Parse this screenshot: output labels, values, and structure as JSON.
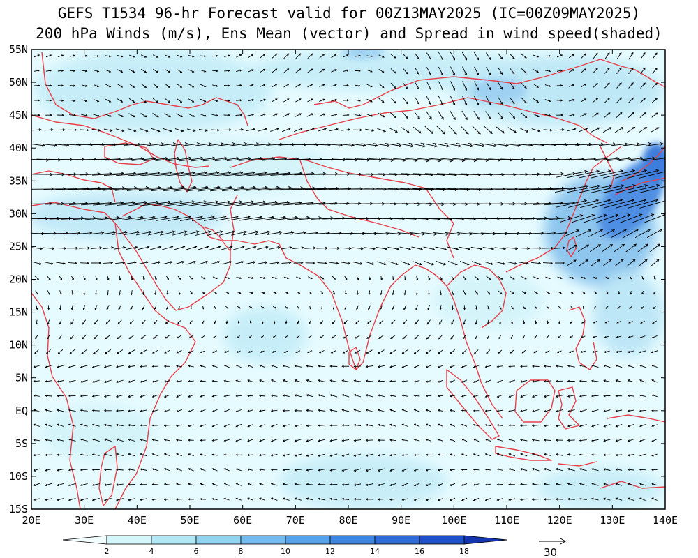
{
  "title": {
    "line1": "GEFS T1534 96-hr Forecast valid for 00Z13MAY2025 (IC=00Z09MAY2025)",
    "line2": "200 hPa Winds (m/s), Ens Mean (vector) and Spread in wind speed(shaded)"
  },
  "axes": {
    "lon_labels": [
      "20E",
      "30E",
      "40E",
      "50E",
      "60E",
      "70E",
      "80E",
      "90E",
      "100E",
      "110E",
      "120E",
      "130E",
      "140E"
    ],
    "lat_labels": [
      "55N",
      "50N",
      "45N",
      "40N",
      "35N",
      "30N",
      "25N",
      "20N",
      "15N",
      "10N",
      "5N",
      "EQ",
      "5S",
      "10S",
      "15S"
    ],
    "lon_range": [
      20,
      140
    ],
    "lat_range": [
      -15,
      55
    ]
  },
  "colorbar": {
    "ticks": [
      "2",
      "4",
      "6",
      "8",
      "10",
      "12",
      "14",
      "16",
      "18"
    ],
    "colors": [
      "#f2fdff",
      "#d4f7fb",
      "#b1e8f5",
      "#93d3f2",
      "#75bbee",
      "#58a2ea",
      "#3f86e0",
      "#2f6cd6",
      "#1f50c8",
      "#1434b0"
    ]
  },
  "reference_vector": {
    "label": "30"
  },
  "colors": {
    "coastline": "#e8404a",
    "arrow": "#000000",
    "background": "#e6fbff"
  }
}
